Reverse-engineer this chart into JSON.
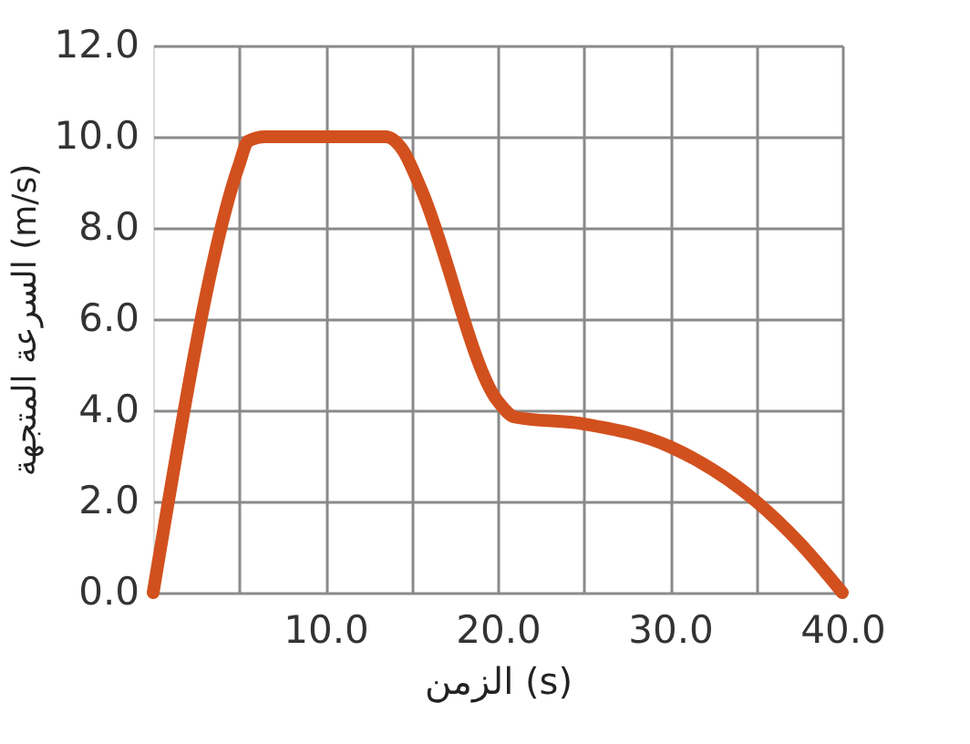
{
  "chart_data": {
    "type": "line",
    "xlabel": "الزمن (s)",
    "ylabel": "السرعة المتجهة (m/s)",
    "x": [
      0,
      5,
      5.5,
      6.5,
      13.5,
      14.5,
      15.5,
      20,
      21,
      25,
      30,
      35,
      37.5,
      40
    ],
    "series": [
      {
        "color": "#d2501e",
        "values": [
          0,
          9.4,
          9.9,
          10,
          10,
          9.7,
          8.9,
          4.2,
          3.85,
          3.7,
          3.2,
          2.0,
          1.1,
          0
        ]
      }
    ],
    "xlim": [
      0,
      40
    ],
    "ylim": [
      0,
      12
    ],
    "xticks": [
      {
        "value": 5,
        "label": null
      },
      {
        "value": 10,
        "label": "10.0"
      },
      {
        "value": 15,
        "label": null
      },
      {
        "value": 20,
        "label": "20.0"
      },
      {
        "value": 25,
        "label": null
      },
      {
        "value": 30,
        "label": "30.0"
      },
      {
        "value": 35,
        "label": null
      },
      {
        "value": 40,
        "label": "40.0"
      }
    ],
    "yticks": [
      {
        "value": 0,
        "label": "0.0"
      },
      {
        "value": 2,
        "label": "2.0"
      },
      {
        "value": 4,
        "label": "4.0"
      },
      {
        "value": 6,
        "label": "6.0"
      },
      {
        "value": 8,
        "label": "8.0"
      },
      {
        "value": 10,
        "label": "10.0"
      },
      {
        "value": 12,
        "label": "12.0"
      }
    ],
    "grid": true,
    "line_style": "solid",
    "legend": false
  }
}
